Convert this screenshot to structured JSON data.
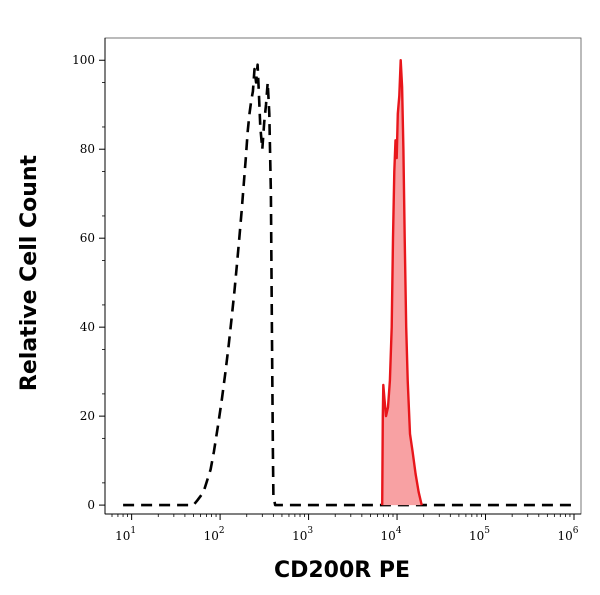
{
  "chart_data": {
    "type": "area",
    "title": "",
    "xlabel": "CD200R PE",
    "ylabel": "Relative Cell Count",
    "x_scale": "log",
    "xlim": [
      5,
      1200000
    ],
    "ylim": [
      -2,
      105
    ],
    "x_ticks": [
      {
        "base": "10",
        "exp": "1",
        "value": 10
      },
      {
        "base": "10",
        "exp": "2",
        "value": 100
      },
      {
        "base": "10",
        "exp": "3",
        "value": 1000
      },
      {
        "base": "10",
        "exp": "4",
        "value": 10000
      },
      {
        "base": "10",
        "exp": "5",
        "value": 100000
      },
      {
        "base": "10",
        "exp": "6",
        "value": 1000000
      }
    ],
    "y_ticks": [
      {
        "label": "0",
        "value": 0
      },
      {
        "label": "20",
        "value": 20
      },
      {
        "label": "40",
        "value": 40
      },
      {
        "label": "60",
        "value": 60
      },
      {
        "label": "80",
        "value": 80
      },
      {
        "label": "100",
        "value": 100
      }
    ],
    "series": [
      {
        "style": "dashed",
        "color": "#000000",
        "filled": false,
        "points": [
          [
            8,
            0
          ],
          [
            20,
            0
          ],
          [
            40,
            0
          ],
          [
            50,
            0
          ],
          [
            55,
            1
          ],
          [
            60,
            2
          ],
          [
            65,
            3
          ],
          [
            70,
            5
          ],
          [
            78,
            8
          ],
          [
            85,
            12
          ],
          [
            95,
            18
          ],
          [
            105,
            24
          ],
          [
            115,
            30
          ],
          [
            125,
            36
          ],
          [
            135,
            42
          ],
          [
            145,
            48
          ],
          [
            155,
            54
          ],
          [
            165,
            60
          ],
          [
            175,
            66
          ],
          [
            185,
            72
          ],
          [
            195,
            78
          ],
          [
            205,
            84
          ],
          [
            215,
            88
          ],
          [
            225,
            91
          ],
          [
            235,
            93
          ],
          [
            245,
            98
          ],
          [
            255,
            95
          ],
          [
            265,
            99
          ],
          [
            275,
            92
          ],
          [
            285,
            85
          ],
          [
            300,
            80
          ],
          [
            315,
            86
          ],
          [
            330,
            90
          ],
          [
            345,
            95
          ],
          [
            360,
            88
          ],
          [
            375,
            70
          ],
          [
            385,
            40
          ],
          [
            395,
            12
          ],
          [
            400,
            2
          ],
          [
            420,
            0
          ],
          [
            1000,
            0
          ],
          [
            10000,
            0
          ],
          [
            100000,
            0
          ],
          [
            1000000,
            0
          ]
        ]
      },
      {
        "style": "solid",
        "color": "#e8161b",
        "fill": "#f8a1a3",
        "filled": true,
        "points": [
          [
            6800,
            0
          ],
          [
            6900,
            20
          ],
          [
            7000,
            27
          ],
          [
            7200,
            24
          ],
          [
            7500,
            20
          ],
          [
            7900,
            22
          ],
          [
            8300,
            28
          ],
          [
            8700,
            40
          ],
          [
            9000,
            60
          ],
          [
            9300,
            75
          ],
          [
            9600,
            82
          ],
          [
            9900,
            78
          ],
          [
            10200,
            88
          ],
          [
            10600,
            92
          ],
          [
            11000,
            100
          ],
          [
            11400,
            94
          ],
          [
            11800,
            80
          ],
          [
            12200,
            60
          ],
          [
            12700,
            40
          ],
          [
            13200,
            28
          ],
          [
            14000,
            16
          ],
          [
            15000,
            12
          ],
          [
            16200,
            7
          ],
          [
            17500,
            3
          ],
          [
            19000,
            0
          ]
        ]
      }
    ]
  }
}
